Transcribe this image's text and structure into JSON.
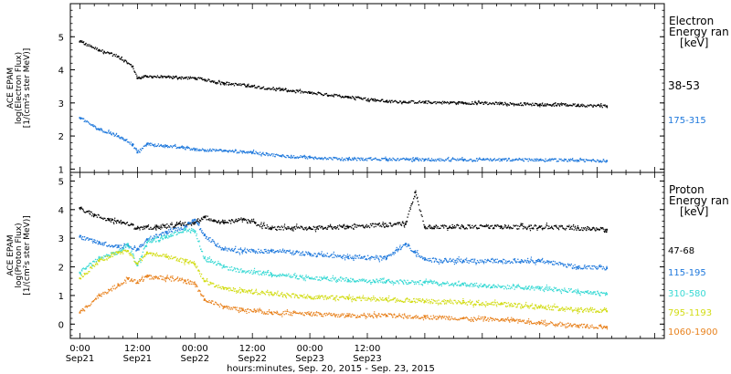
{
  "chart_data": [
    {
      "type": "scatter",
      "panel": "electron",
      "ylabel_lines": [
        "ACE EPAM",
        "log(Electron Flux)",
        "[1/(cm²s ster MeV)]"
      ],
      "ylim": [
        0.9,
        6.0
      ],
      "yticks": [
        1,
        2,
        3,
        4,
        5
      ],
      "legend_title_lines": [
        "Electron",
        "Energy ran",
        "[keV]"
      ],
      "series": [
        {
          "name": "38-53",
          "color": "#000000",
          "x": [
            0,
            4,
            8,
            11,
            12,
            14,
            18,
            24,
            30,
            36,
            42,
            48,
            56,
            64,
            72,
            80,
            88,
            96,
            104,
            110
          ],
          "y": [
            4.85,
            4.6,
            4.4,
            4.1,
            3.75,
            3.8,
            3.78,
            3.75,
            3.6,
            3.5,
            3.4,
            3.3,
            3.18,
            3.05,
            3.02,
            3.0,
            2.98,
            2.95,
            2.93,
            2.9
          ]
        },
        {
          "name": "175-315",
          "color": "#1e78dc",
          "x": [
            0,
            4,
            8,
            11,
            12,
            14,
            18,
            24,
            30,
            36,
            42,
            48,
            56,
            64,
            72,
            80,
            88,
            96,
            104,
            110
          ],
          "y": [
            2.55,
            2.2,
            2.0,
            1.75,
            1.5,
            1.75,
            1.7,
            1.6,
            1.55,
            1.5,
            1.4,
            1.35,
            1.3,
            1.3,
            1.28,
            1.28,
            1.28,
            1.28,
            1.26,
            1.25
          ]
        }
      ]
    },
    {
      "type": "scatter",
      "panel": "proton",
      "ylabel_lines": [
        "ACE EPAM",
        "log(Proton Flux)",
        "[1/(cm²s ster MeV)]"
      ],
      "ylim": [
        -0.5,
        5.3
      ],
      "yticks": [
        0,
        1,
        2,
        3,
        4,
        5
      ],
      "legend_title_lines": [
        "Proton",
        "Energy ran",
        "[keV]"
      ],
      "series": [
        {
          "name": "47-68",
          "color": "#000000",
          "x": [
            0,
            3,
            6,
            9,
            12,
            16,
            20,
            24,
            26,
            28,
            30,
            34,
            40,
            48,
            56,
            68,
            70,
            72,
            74,
            80,
            88,
            96,
            104,
            110
          ],
          "y": [
            4.05,
            3.8,
            3.65,
            3.55,
            3.35,
            3.4,
            3.45,
            3.55,
            3.75,
            3.6,
            3.55,
            3.65,
            3.35,
            3.35,
            3.4,
            3.5,
            4.6,
            3.4,
            3.4,
            3.4,
            3.4,
            3.4,
            3.35,
            3.3
          ]
        },
        {
          "name": "115-195",
          "color": "#1e78dc",
          "x": [
            0,
            4,
            8,
            10,
            12,
            14,
            18,
            22,
            24,
            26,
            30,
            34,
            40,
            48,
            56,
            64,
            68,
            70,
            72,
            80,
            88,
            96,
            104,
            110
          ],
          "y": [
            3.05,
            2.85,
            2.7,
            2.75,
            2.6,
            2.95,
            3.2,
            3.4,
            3.65,
            3.1,
            2.6,
            2.55,
            2.55,
            2.45,
            2.35,
            2.3,
            2.8,
            2.5,
            2.25,
            2.2,
            2.2,
            2.2,
            2.0,
            1.95
          ]
        },
        {
          "name": "310-580",
          "color": "#38d9d4",
          "x": [
            0,
            4,
            8,
            10,
            12,
            14,
            18,
            22,
            24,
            26,
            30,
            34,
            40,
            48,
            56,
            64,
            72,
            80,
            88,
            96,
            104,
            110
          ],
          "y": [
            1.8,
            2.3,
            2.5,
            2.8,
            2.05,
            2.85,
            3.05,
            3.3,
            3.25,
            2.3,
            2.0,
            1.85,
            1.75,
            1.6,
            1.55,
            1.5,
            1.45,
            1.4,
            1.3,
            1.25,
            1.15,
            1.05
          ]
        },
        {
          "name": "795-1193",
          "color": "#d2dc14",
          "x": [
            0,
            4,
            8,
            10,
            12,
            14,
            18,
            22,
            24,
            26,
            30,
            34,
            40,
            48,
            56,
            64,
            72,
            80,
            88,
            96,
            104,
            110
          ],
          "y": [
            1.6,
            2.2,
            2.5,
            2.55,
            2.1,
            2.5,
            2.35,
            2.2,
            2.1,
            1.5,
            1.25,
            1.15,
            1.05,
            0.95,
            0.9,
            0.85,
            0.8,
            0.75,
            0.7,
            0.6,
            0.5,
            0.45
          ]
        },
        {
          "name": "1060-1900",
          "color": "#e8821e",
          "x": [
            0,
            4,
            8,
            10,
            12,
            14,
            18,
            22,
            24,
            26,
            30,
            34,
            40,
            48,
            56,
            64,
            72,
            80,
            88,
            96,
            104,
            110
          ],
          "y": [
            0.4,
            1.0,
            1.35,
            1.6,
            1.45,
            1.65,
            1.6,
            1.5,
            1.4,
            0.85,
            0.6,
            0.5,
            0.4,
            0.35,
            0.3,
            0.3,
            0.25,
            0.2,
            0.15,
            0.05,
            -0.05,
            -0.1
          ]
        }
      ]
    }
  ],
  "x_axis": {
    "range_hours": [
      -2,
      122
    ],
    "ticks": [
      {
        "hour": 0,
        "time": "0:00",
        "date": "Sep21"
      },
      {
        "hour": 12,
        "time": "12:00",
        "date": "Sep21"
      },
      {
        "hour": 24,
        "time": "00:00",
        "date": "Sep22"
      },
      {
        "hour": 36,
        "time": "12:00",
        "date": "Sep22"
      },
      {
        "hour": 48,
        "time": "00:00",
        "date": "Sep23"
      },
      {
        "hour": 60,
        "time": "12:00",
        "date": "Sep23"
      }
    ],
    "xlabel": "hours:minutes, Sep. 20, 2015 - Sep. 23, 2015"
  }
}
